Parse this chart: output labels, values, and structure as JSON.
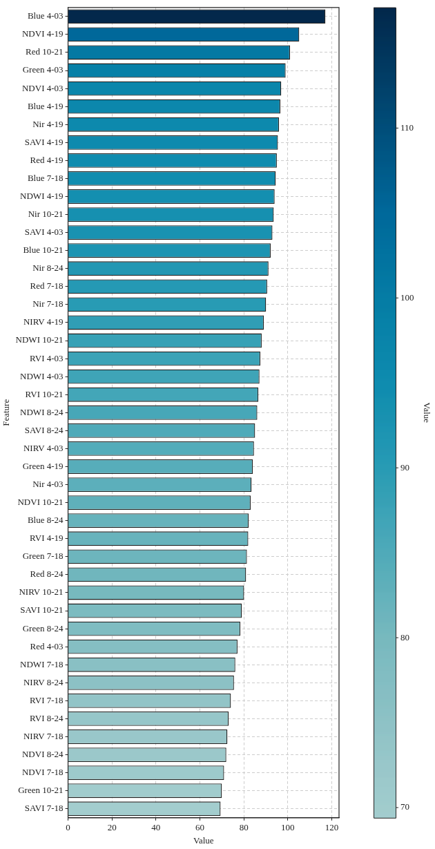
{
  "chart_data": {
    "type": "bar",
    "orientation": "horizontal",
    "xlabel": "Value",
    "ylabel": "Feature",
    "clabel": "Value",
    "categories": [
      "Blue 4-03",
      "NDVI 4-19",
      "Red 10-21",
      "Green 4-03",
      "NDVI 4-03",
      "Blue 4-19",
      "Nir 4-19",
      "SAVI 4-19",
      "Red 4-19",
      "Blue 7-18",
      "NDWI 4-19",
      "Nir 10-21",
      "SAVI 4-03",
      "Blue 10-21",
      "Nir 8-24",
      "Red 7-18",
      "Nir 7-18",
      "NIRV 4-19",
      "NDWI 10-21",
      "RVI 4-03",
      "NDWI 4-03",
      "RVI 10-21",
      "NDWI 8-24",
      "SAVI 8-24",
      "NIRV 4-03",
      "Green 4-19",
      "Nir 4-03",
      "NDVI 10-21",
      "Blue 8-24",
      "RVI 4-19",
      "Green 7-18",
      "Red 8-24",
      "NIRV 10-21",
      "SAVI 10-21",
      "Green 8-24",
      "Red 4-03",
      "NDWI 7-18",
      "NIRV 8-24",
      "RVI 7-18",
      "RVI 8-24",
      "NIRV 7-18",
      "NDVI 8-24",
      "NDVI 7-18",
      "Green 10-21",
      "SAVI 7-18"
    ],
    "values": [
      117.1,
      105.2,
      101.0,
      99.0,
      97.0,
      96.6,
      96.0,
      95.5,
      95.0,
      94.5,
      94.0,
      93.6,
      93.0,
      92.2,
      91.2,
      90.6,
      90.1,
      89.1,
      88.1,
      87.5,
      87.1,
      86.6,
      86.1,
      85.1,
      84.6,
      84.1,
      83.5,
      83.1,
      82.2,
      82.0,
      81.4,
      81.0,
      80.1,
      79.1,
      78.4,
      77.1,
      76.1,
      75.5,
      74.1,
      73.1,
      72.5,
      72.0,
      71.0,
      70.0,
      69.4
    ],
    "colors": [
      "#03284b",
      "#00689a",
      "#0479a3",
      "#0780a7",
      "#0b86ab",
      "#0c87ac",
      "#0d89ad",
      "#0e8aae",
      "#0f8caf",
      "#118daf",
      "#148fb0",
      "#1690b0",
      "#1992b1",
      "#1d94b2",
      "#2297b3",
      "#2599b4",
      "#289bb4",
      "#309eb5",
      "#37a1b6",
      "#3ca3b7",
      "#3fa4b7",
      "#43a6b8",
      "#47a7b8",
      "#4faab9",
      "#53acba",
      "#57adba",
      "#5cafbb",
      "#5fb0bb",
      "#66b3bc",
      "#68b3bc",
      "#6db5bd",
      "#70b6bd",
      "#77b9be",
      "#7cbbc0",
      "#7fbcc1",
      "#85bec3",
      "#89c0c4",
      "#8cc1c5",
      "#92c4c7",
      "#96c6c9",
      "#99c7ca",
      "#9bc8ca",
      "#9dcacc",
      "#a1cccd",
      "#a3cdce"
    ],
    "xlim": [
      0,
      123.3
    ],
    "xticks": [
      0,
      20,
      40,
      60,
      80,
      100,
      120
    ],
    "clim": [
      69.4,
      117.1
    ],
    "cticks": [
      70,
      80,
      90,
      100,
      110
    ],
    "grid": true
  }
}
